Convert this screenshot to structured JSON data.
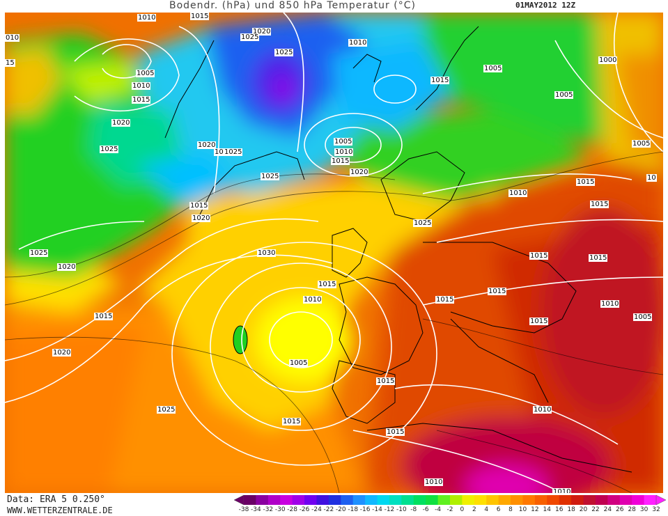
{
  "header": {
    "title": "Bodendr. (hPa) und 850 hPa Temperatur (°C)",
    "date": "01MAY2012 12Z"
  },
  "footer": {
    "source": "Data: ERA 5 0.250°",
    "website": "WWW.WETTERZENTRALE.DE"
  },
  "legend": {
    "ticks": [
      "-38",
      "-34",
      "-32",
      "-30",
      "-28",
      "-26",
      "-24",
      "-22",
      "-20",
      "-18",
      "-16",
      "-14",
      "-12",
      "-10",
      "-8",
      "-6",
      "-4",
      "-2",
      "0",
      "2",
      "4",
      "6",
      "8",
      "10",
      "12",
      "14",
      "16",
      "18",
      "20",
      "22",
      "24",
      "26",
      "28",
      "30",
      "32"
    ],
    "colors": [
      "#6a0066",
      "#8a00a0",
      "#b000c8",
      "#c800e0",
      "#a000e8",
      "#7000f0",
      "#4010e0",
      "#2030e0",
      "#1e60f0",
      "#1e90ff",
      "#10b8ff",
      "#00d8f0",
      "#00e0c0",
      "#00e090",
      "#00e060",
      "#10e040",
      "#60f020",
      "#b0f000",
      "#f0f000",
      "#ffe000",
      "#ffc400",
      "#ffa800",
      "#ff9000",
      "#ff7800",
      "#f86000",
      "#f04800",
      "#e03000",
      "#d01c10",
      "#c01030",
      "#c00050",
      "#d00080",
      "#e000b0",
      "#f000d8",
      "#ff20ff"
    ]
  },
  "pressure_labels": [
    "1010",
    "1015",
    "010",
    "15",
    "1020",
    "1025",
    "1025",
    "1010",
    "1005",
    "1000",
    "1005",
    "1010",
    "1015",
    "1005",
    "1015",
    "1020",
    "1025",
    "1010",
    "1015",
    "1005",
    "1005",
    "1020",
    "1015",
    "1025",
    "1020",
    "1025",
    "1015",
    "1020",
    "1025",
    "1030",
    "1010",
    "1025",
    "1020",
    "1015",
    "1015",
    "1015",
    "1010",
    "1015",
    "1005",
    "1015",
    "1020",
    "1005",
    "1015",
    "1010",
    "1015",
    "1015",
    "1015",
    "1025",
    "1015",
    "1015",
    "1010",
    "1010",
    "1010",
    "1015",
    "10"
  ]
}
